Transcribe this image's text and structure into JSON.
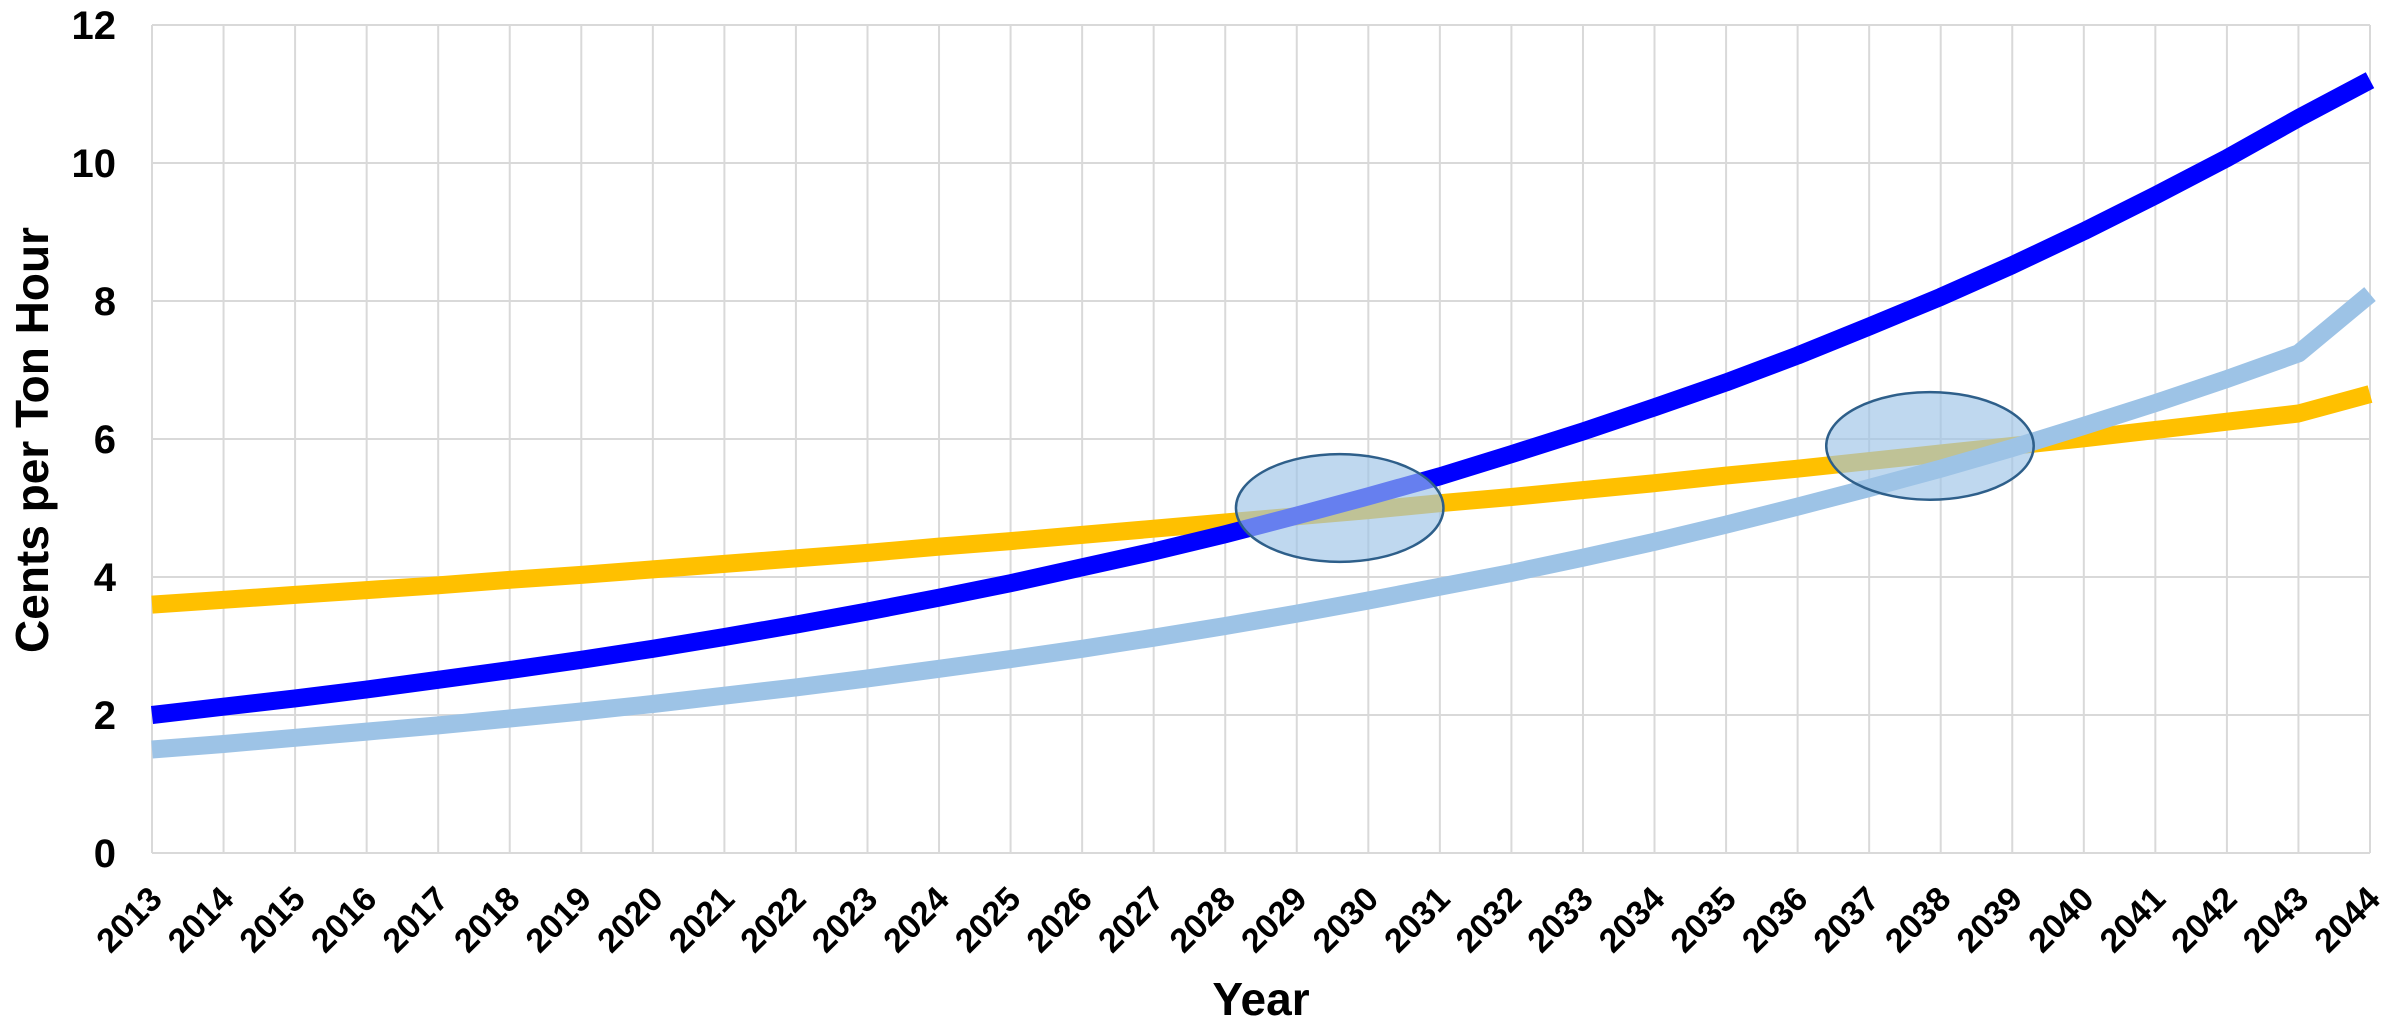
{
  "chart_data": {
    "type": "line",
    "title": "",
    "xlabel": "Year",
    "ylabel": "Cents per Ton Hour",
    "x": [
      2013,
      2014,
      2015,
      2016,
      2017,
      2018,
      2019,
      2020,
      2021,
      2022,
      2023,
      2024,
      2025,
      2026,
      2027,
      2028,
      2029,
      2030,
      2031,
      2032,
      2033,
      2034,
      2035,
      2036,
      2037,
      2038,
      2039,
      2040,
      2041,
      2042,
      2043,
      2044
    ],
    "x_tick_labels": [
      "2013",
      "2014",
      "2015",
      "2016",
      "2017",
      "2018",
      "2019",
      "2020",
      "2021",
      "2022",
      "2023",
      "2024",
      "2025",
      "2026",
      "2027",
      "2028",
      "2029",
      "2030",
      "2031",
      "2032",
      "2033",
      "2034",
      "2035",
      "2036",
      "2037",
      "2038",
      "2039",
      "2040",
      "2041",
      "2042",
      "2043",
      "2044"
    ],
    "ylim": [
      0,
      12
    ],
    "y_ticks": [
      0,
      2,
      4,
      6,
      8,
      10,
      12
    ],
    "y_tick_labels": [
      "0",
      "2",
      "4",
      "6",
      "8",
      "10",
      "12"
    ],
    "grid": true,
    "legend": "none",
    "series": [
      {
        "color": "#ffc000",
        "values": [
          3.6,
          3.67,
          3.74,
          3.81,
          3.88,
          3.96,
          4.03,
          4.11,
          4.19,
          4.27,
          4.35,
          4.44,
          4.52,
          4.61,
          4.7,
          4.79,
          4.88,
          4.97,
          5.07,
          5.16,
          5.26,
          5.36,
          5.47,
          5.57,
          5.68,
          5.79,
          5.9,
          6.01,
          6.13,
          6.25,
          6.37,
          6.65
        ]
      },
      {
        "color": "#0000ff",
        "values": [
          2.0,
          2.12,
          2.24,
          2.37,
          2.51,
          2.65,
          2.8,
          2.96,
          3.13,
          3.31,
          3.5,
          3.7,
          3.91,
          4.14,
          4.37,
          4.62,
          4.89,
          5.17,
          5.46,
          5.78,
          6.11,
          6.46,
          6.82,
          7.21,
          7.63,
          8.06,
          8.52,
          9.01,
          9.53,
          10.07,
          10.65,
          11.2
        ]
      },
      {
        "color": "#9dc3e6",
        "values": [
          1.5,
          1.58,
          1.67,
          1.76,
          1.85,
          1.95,
          2.05,
          2.16,
          2.28,
          2.4,
          2.53,
          2.67,
          2.81,
          2.96,
          3.12,
          3.29,
          3.47,
          3.66,
          3.86,
          4.06,
          4.28,
          4.51,
          4.76,
          5.02,
          5.29,
          5.57,
          5.87,
          6.19,
          6.52,
          6.87,
          7.24,
          8.1
        ]
      }
    ],
    "annotations": [
      {
        "type": "ellipse",
        "cx": 2029.6,
        "cy": 5.0,
        "rx_years": 1.45,
        "ry_units": 0.78,
        "fill": "#9dc3e6",
        "stroke": "#2e5f8a"
      },
      {
        "type": "ellipse",
        "cx": 2037.85,
        "cy": 5.9,
        "rx_years": 1.45,
        "ry_units": 0.78,
        "fill": "#9dc3e6",
        "stroke": "#2e5f8a"
      }
    ]
  }
}
